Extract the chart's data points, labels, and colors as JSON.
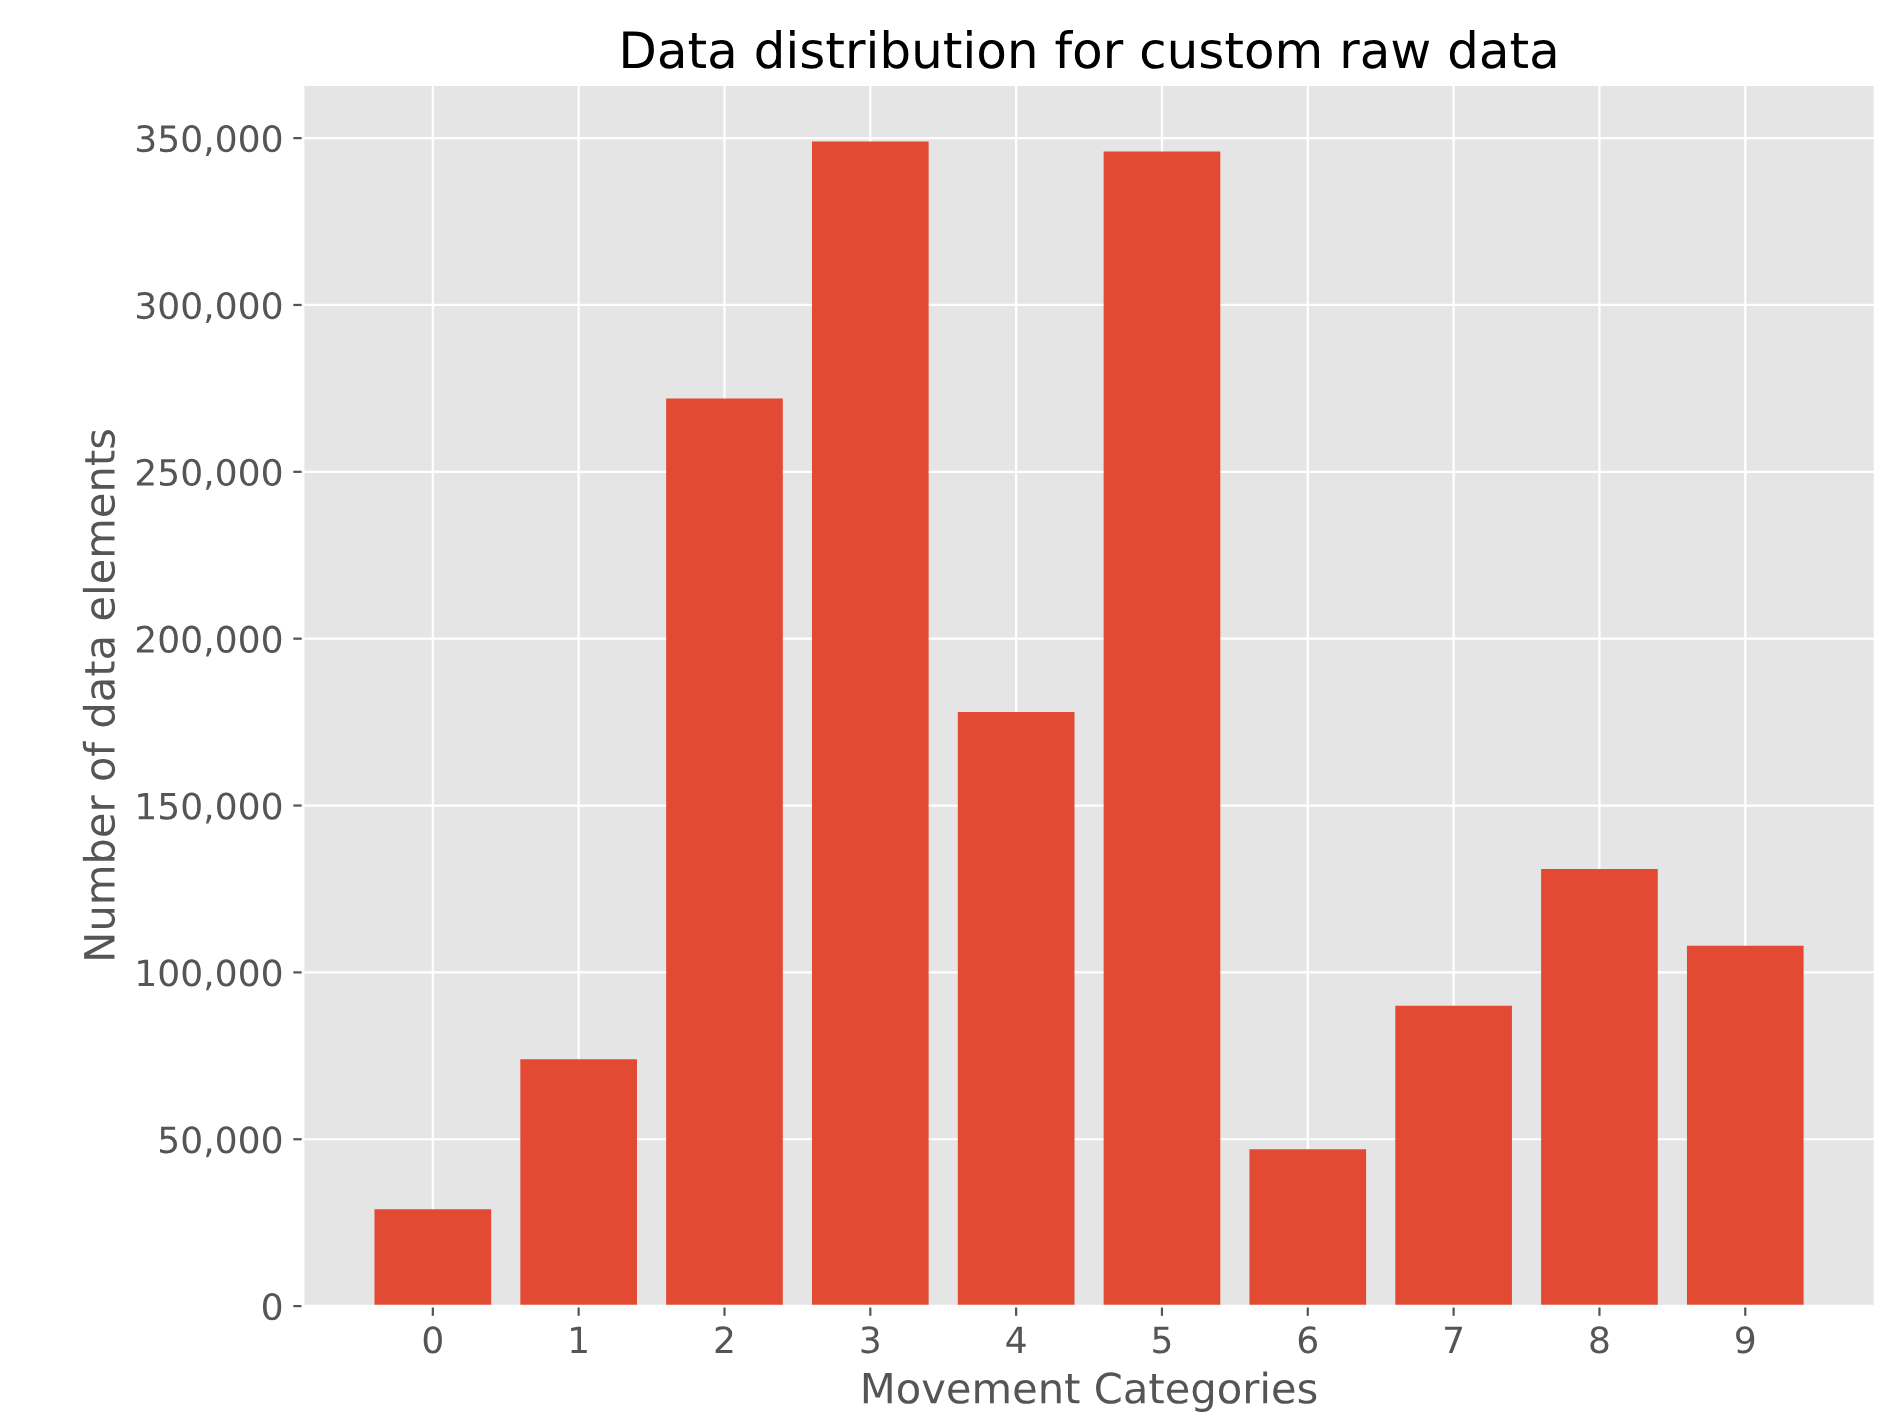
{
  "chart_data": {
    "type": "bar",
    "title": "Data distribution for custom raw data",
    "xlabel": "Movement Categories",
    "ylabel": "Number of data elements",
    "categories": [
      "0",
      "1",
      "2",
      "3",
      "4",
      "5",
      "6",
      "7",
      "8",
      "9"
    ],
    "values": [
      29000,
      74000,
      272000,
      349000,
      178000,
      346000,
      47000,
      90000,
      131000,
      108000
    ],
    "color": "#e24a33",
    "ylim": [
      0,
      366000
    ],
    "yticks": [
      0,
      {
        "value": 50000,
        "label": "50,000"
      },
      {
        "value": 100000,
        "label": "100,000"
      },
      {
        "value": 150000,
        "label": "150,000"
      },
      {
        "value": 200000,
        "label": "200,000"
      },
      {
        "value": 250000,
        "label": "250,000"
      },
      {
        "value": 300000,
        "label": "300,000"
      },
      {
        "value": 350000,
        "label": "350,000"
      }
    ],
    "grid": true
  }
}
